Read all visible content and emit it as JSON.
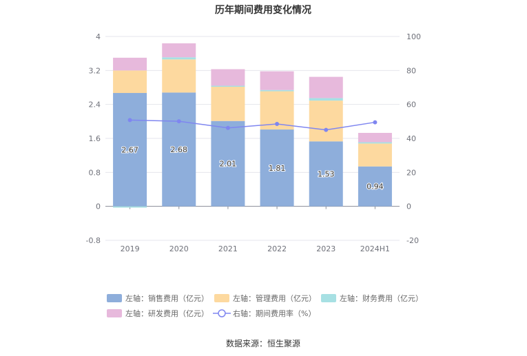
{
  "chart_data": {
    "type": "bar",
    "title": "历年期间费用变化情况",
    "categories": [
      "2019",
      "2020",
      "2021",
      "2022",
      "2023",
      "2024H1"
    ],
    "left_axis": {
      "ticks": [
        "-0.8",
        "0",
        "0.8",
        "1.6",
        "2.4",
        "3.2",
        "4"
      ],
      "min": -0.8,
      "max": 4.0
    },
    "right_axis": {
      "ticks": [
        "-20",
        "0",
        "20",
        "40",
        "60",
        "80",
        "100"
      ],
      "min": -20,
      "max": 100
    },
    "stacked_series": [
      {
        "name": "左轴：销售费用（亿元）",
        "color": "#8eaedb",
        "values": [
          2.67,
          2.68,
          2.01,
          1.81,
          1.53,
          0.94
        ],
        "labels": [
          "2.67",
          "2.68",
          "2.01",
          "1.81",
          "1.53",
          "0.94"
        ]
      },
      {
        "name": "左轴：管理费用（亿元）",
        "color": "#fdd99f",
        "values": [
          0.53,
          0.78,
          0.82,
          0.9,
          0.96,
          0.54
        ]
      },
      {
        "name": "左轴：财务费用（亿元）",
        "color": "#a7e0e3",
        "values": [
          -0.03,
          0.05,
          0.01,
          0.03,
          0.06,
          0.03
        ]
      },
      {
        "name": "左轴：研发费用（亿元）",
        "color": "#e7b9dc",
        "values": [
          0.3,
          0.33,
          0.39,
          0.44,
          0.5,
          0.22
        ]
      }
    ],
    "line_series": {
      "name": "右轴：期间费用率（%）",
      "color": "#7f86f0",
      "values": [
        50.8,
        50.1,
        46.2,
        48.5,
        45.0,
        49.5
      ]
    },
    "grid": true,
    "legend_position": "bottom"
  },
  "source": "数据来源：恒生聚源"
}
